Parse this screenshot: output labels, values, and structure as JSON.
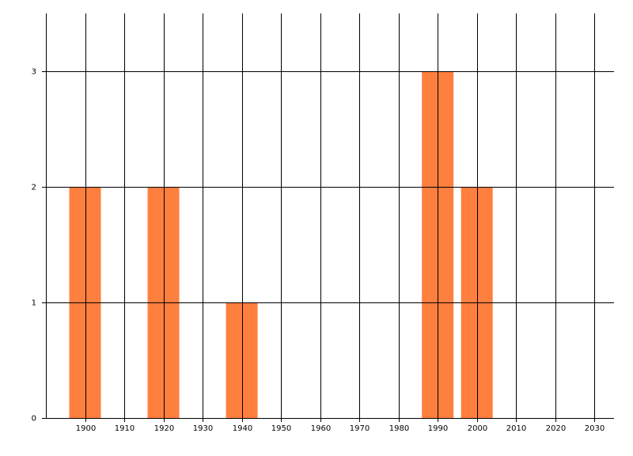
{
  "chart_data": {
    "type": "bar",
    "x": [
      1900,
      1920,
      1940,
      1990,
      2000
    ],
    "values": [
      2,
      2,
      1,
      3,
      2
    ],
    "color": "#ff7f3f",
    "xlim": [
      1890,
      2035
    ],
    "xticks": [
      1900,
      1910,
      1920,
      1930,
      1940,
      1950,
      1960,
      1970,
      1980,
      1990,
      2000,
      2010,
      2020,
      2030
    ],
    "ylim": [
      0,
      3.5
    ],
    "yticks": [
      0,
      1,
      2,
      3
    ],
    "grid": true
  }
}
